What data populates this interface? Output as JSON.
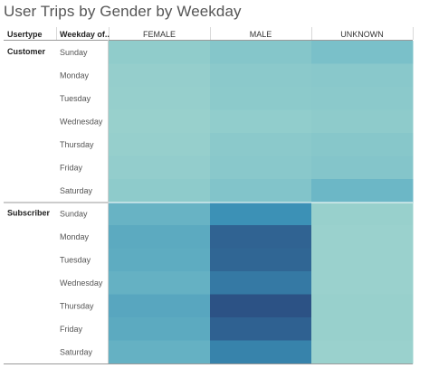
{
  "chart_data": {
    "type": "heatmap",
    "title": "User Trips by Gender by Weekday",
    "row_headers": [
      "Usertype",
      "Weekday of.."
    ],
    "columns": [
      "FEMALE",
      "MALE",
      "UNKNOWN"
    ],
    "groups": [
      {
        "name": "Customer",
        "rows": [
          {
            "label": "Sunday",
            "values": [
              0.33,
              0.39,
              0.46
            ]
          },
          {
            "label": "Monday",
            "values": [
              0.3,
              0.36,
              0.37
            ]
          },
          {
            "label": "Tuesday",
            "values": [
              0.29,
              0.35,
              0.36
            ]
          },
          {
            "label": "Wednesday",
            "values": [
              0.28,
              0.32,
              0.34
            ]
          },
          {
            "label": "Thursday",
            "values": [
              0.29,
              0.36,
              0.38
            ]
          },
          {
            "label": "Friday",
            "values": [
              0.31,
              0.37,
              0.4
            ]
          },
          {
            "label": "Saturday",
            "values": [
              0.34,
              0.41,
              0.53
            ]
          }
        ]
      },
      {
        "name": "Subscriber",
        "rows": [
          {
            "label": "Sunday",
            "values": [
              0.55,
              0.74,
              0.28
            ]
          },
          {
            "label": "Monday",
            "values": [
              0.6,
              0.93,
              0.27
            ]
          },
          {
            "label": "Tuesday",
            "values": [
              0.59,
              0.92,
              0.27
            ]
          },
          {
            "label": "Wednesday",
            "values": [
              0.56,
              0.84,
              0.27
            ]
          },
          {
            "label": "Thursday",
            "values": [
              0.62,
              1.0,
              0.28
            ]
          },
          {
            "label": "Friday",
            "values": [
              0.6,
              0.94,
              0.28
            ]
          },
          {
            "label": "Saturday",
            "values": [
              0.56,
              0.8,
              0.27
            ]
          }
        ]
      }
    ],
    "color_scale": [
      "#c4e8da",
      "#9dd3cd",
      "#73bcc8",
      "#3a8fb5",
      "#2c5285"
    ],
    "value_range": [
      0,
      1
    ]
  }
}
